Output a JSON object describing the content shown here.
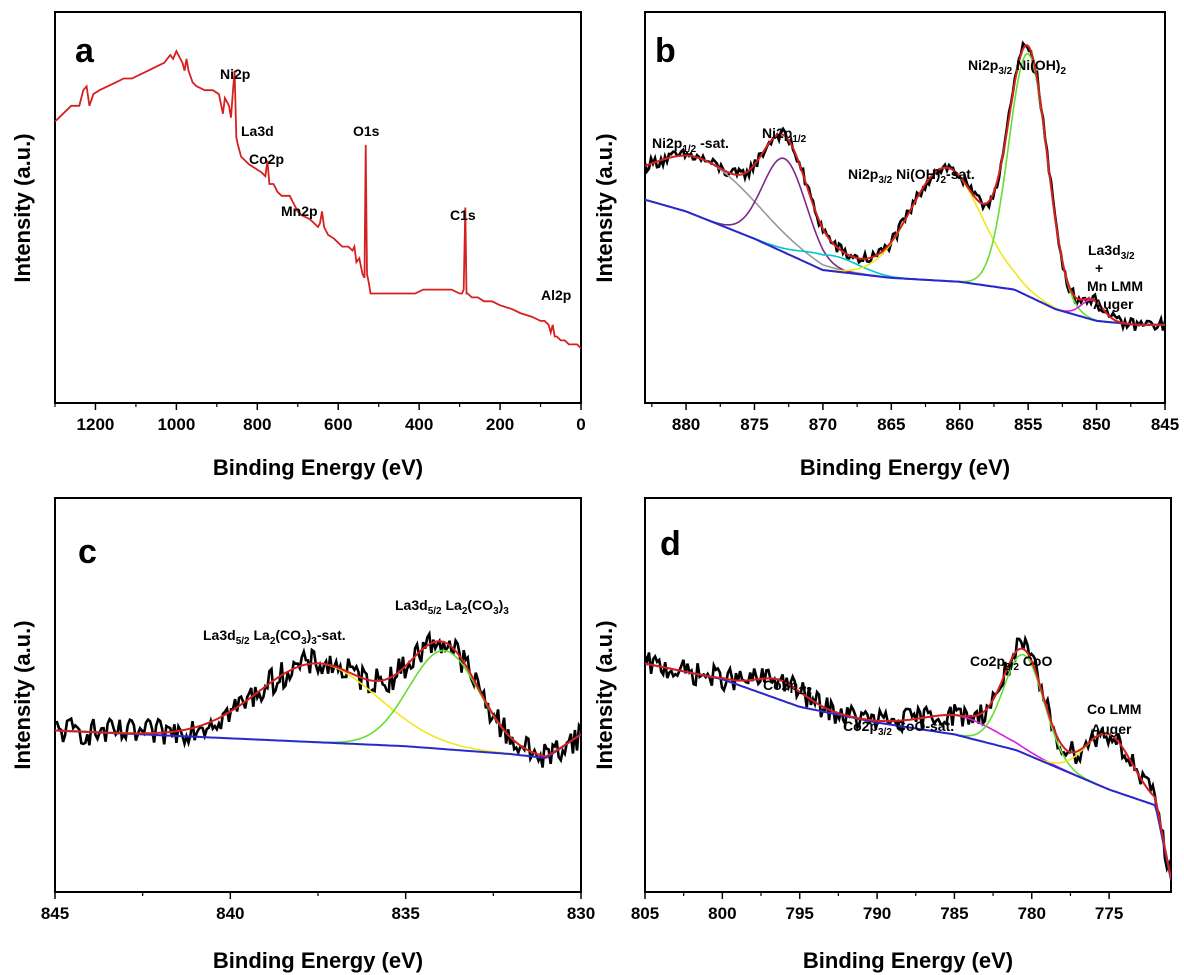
{
  "chart_data": [
    {
      "id": "a",
      "type": "line",
      "panel_label": "a",
      "xlabel": "Binding Energy (eV)",
      "ylabel": "Intensity (a.u.)",
      "x_reversed": true,
      "xlim": [
        1300,
        0
      ],
      "xticks": [
        1200,
        1000,
        800,
        600,
        400,
        200,
        0
      ],
      "ylim": [
        0,
        100
      ],
      "yticks_visible": false,
      "series": [
        {
          "color": "#d62020",
          "x": [
            1300,
            1280,
            1260,
            1240,
            1230,
            1222,
            1215,
            1205,
            1190,
            1170,
            1150,
            1130,
            1110,
            1090,
            1070,
            1050,
            1030,
            1015,
            1008,
            1000,
            990,
            985,
            980,
            975,
            970,
            960,
            950,
            930,
            910,
            895,
            885,
            880,
            875,
            870,
            865,
            860,
            856,
            852,
            848,
            840,
            830,
            820,
            805,
            790,
            780,
            775,
            770,
            760,
            750,
            740,
            720,
            710,
            700,
            690,
            670,
            660,
            650,
            645,
            640,
            635,
            630,
            625,
            610,
            600,
            590,
            575,
            565,
            560,
            555,
            548,
            540,
            535,
            532,
            529,
            525,
            520,
            505,
            495,
            470,
            440,
            410,
            390,
            370,
            340,
            320,
            300,
            294,
            290,
            286,
            283,
            280,
            270,
            255,
            240,
            220,
            200,
            170,
            150,
            120,
            100,
            90,
            80,
            75,
            70,
            65,
            60,
            50,
            40,
            30,
            20,
            10,
            0
          ],
          "y": [
            72,
            74,
            76,
            76,
            80,
            81,
            76,
            79,
            80,
            81,
            82,
            83,
            83,
            84,
            85,
            86,
            87,
            89,
            88,
            90,
            88,
            87,
            85,
            88,
            85,
            82,
            81,
            80,
            80,
            79,
            74,
            78,
            77,
            76,
            73,
            80,
            85,
            68,
            66,
            63,
            62,
            61,
            60,
            59,
            58,
            62,
            56,
            56,
            54,
            53,
            53,
            51,
            49,
            48,
            47,
            46,
            45,
            46,
            49,
            45,
            44,
            43,
            42,
            41,
            40,
            40,
            39,
            40,
            36,
            37,
            33,
            32,
            66,
            33,
            31,
            28,
            28,
            28,
            28,
            28,
            28,
            29,
            29,
            29,
            29,
            28,
            28,
            29,
            50,
            28,
            28,
            27,
            27,
            26,
            26,
            25,
            24,
            23,
            22,
            21,
            21,
            20,
            18,
            20,
            17,
            17,
            16,
            16,
            15,
            15,
            15,
            14
          ]
        }
      ],
      "annotations": [
        {
          "text": "Ni2p",
          "sub": "",
          "rest": ""
        },
        {
          "text": "La3d",
          "sub": "",
          "rest": ""
        },
        {
          "text": "Co2p",
          "sub": "",
          "rest": ""
        },
        {
          "text": "Mn2p",
          "sub": "",
          "rest": ""
        },
        {
          "text": "O1s",
          "sub": "",
          "rest": ""
        },
        {
          "text": "C1s",
          "sub": "",
          "rest": ""
        },
        {
          "text": "Al2p",
          "sub": "",
          "rest": ""
        }
      ]
    },
    {
      "id": "b",
      "type": "line",
      "panel_label": "b",
      "xlabel": "Binding Energy (eV)",
      "ylabel": "Intensity (a.u.)",
      "x_reversed": true,
      "xlim": [
        883,
        845
      ],
      "xticks": [
        880,
        875,
        870,
        865,
        860,
        855,
        850,
        845
      ],
      "ylim": [
        0,
        100
      ],
      "yticks_visible": false,
      "background": {
        "x": [
          883,
          880,
          875,
          870,
          865,
          860,
          856,
          853,
          850,
          847,
          845
        ],
        "y": [
          52,
          49,
          42,
          34,
          32,
          31,
          29,
          24,
          21,
          20,
          20
        ]
      },
      "peaks": [
        {
          "center": 878.8,
          "amp": 15,
          "width": 4.0,
          "color": "#999999"
        },
        {
          "center": 872.8,
          "amp": 24,
          "width": 1.6,
          "color": "#7b2a8c"
        },
        {
          "center": 869.5,
          "amp": 4,
          "width": 2.0,
          "color": "#00c8c8"
        },
        {
          "center": 861.0,
          "amp": 29,
          "width": 2.6,
          "color": "#f0e81c"
        },
        {
          "center": 855.0,
          "amp": 62,
          "width": 1.4,
          "color": "#66dd33"
        },
        {
          "center": 850.3,
          "amp": 5,
          "width": 0.8,
          "color": "#d81ed8"
        }
      ],
      "envelope_color": "#d62020",
      "background_color": "#2828d0",
      "raw_color": "#000000",
      "annotations": [
        {
          "text": "Ni2p",
          "sub": "1/2",
          "rest": " -sat."
        },
        {
          "text": "Ni2p",
          "sub": "1/2",
          "rest": ""
        },
        {
          "text": "Ni2p",
          "sub": "3/2",
          "rest": " Ni(OH)",
          "sub2": "2",
          "rest2": "-sat."
        },
        {
          "text": "Ni2p",
          "sub": "3/2",
          "rest": " Ni(OH)",
          "sub2": "2",
          "rest2": ""
        },
        {
          "text": "La3d",
          "sub": "3/2",
          "rest": ""
        },
        {
          "text": "+",
          "sub": "",
          "rest": ""
        },
        {
          "text": "Mn LMM",
          "sub": "",
          "rest": ""
        },
        {
          "text": "Auger",
          "sub": "",
          "rest": ""
        }
      ]
    },
    {
      "id": "c",
      "type": "line",
      "panel_label": "c",
      "xlabel": "Binding Energy (eV)",
      "ylabel": "Intensity (a.u.)",
      "x_reversed": true,
      "xlim": [
        845,
        830
      ],
      "xticks": [
        845,
        840,
        835,
        830
      ],
      "ylim": [
        0,
        100
      ],
      "yticks_visible": false,
      "background": {
        "x": [
          845,
          840,
          835,
          832,
          831,
          830
        ],
        "y": [
          41,
          39,
          37,
          35,
          34,
          40
        ]
      },
      "peaks": [
        {
          "center": 837.5,
          "amp": 20,
          "width": 1.7,
          "color": "#f0e81c"
        },
        {
          "center": 833.9,
          "amp": 25,
          "width": 1.0,
          "color": "#66dd33"
        }
      ],
      "envelope_color": "#d62020",
      "background_color": "#2828d0",
      "raw_color": "#000000",
      "annotations": [
        {
          "text": "La3d",
          "sub": "5/2",
          "rest": " La",
          "sub2": "2",
          "rest2": "(CO",
          "sub3": "3",
          "rest3": ")",
          "sub4": "3",
          "rest4": "-sat."
        },
        {
          "text": "La3d",
          "sub": "5/2",
          "rest": " La",
          "sub2": "2",
          "rest2": "(CO",
          "sub3": "3",
          "rest3": ")",
          "sub4": "3",
          "rest4": ""
        }
      ]
    },
    {
      "id": "d",
      "type": "line",
      "panel_label": "d",
      "xlabel": "Binding Energy (eV)",
      "ylabel": "Intensity (a.u.)",
      "x_reversed": true,
      "xlim": [
        805,
        771
      ],
      "xticks": [
        805,
        800,
        795,
        790,
        785,
        780,
        775
      ],
      "ylim": [
        0,
        100
      ],
      "yticks_visible": false,
      "background": {
        "x": [
          805,
          800,
          795,
          790,
          785,
          781,
          778,
          775,
          772,
          771
        ],
        "y": [
          58,
          54,
          47,
          43,
          40,
          36,
          31,
          26,
          22,
          3
        ]
      },
      "peaks": [
        {
          "center": 796.2,
          "amp": 5,
          "width": 1.6,
          "color": "#d62020"
        },
        {
          "center": 784.5,
          "amp": 5,
          "width": 2.5,
          "color": "#d81ed8"
        },
        {
          "center": 780.5,
          "amp": 25,
          "width": 1.3,
          "color": "#66dd33"
        },
        {
          "center": 775.0,
          "amp": 14,
          "width": 1.5,
          "color": "#f0e81c"
        }
      ],
      "envelope_color": "#d62020",
      "background_color": "#2828d0",
      "raw_color": "#000000",
      "annotations": [
        {
          "text": "Co2p",
          "sub": "1/2",
          "rest": ""
        },
        {
          "text": "Co2p",
          "sub": "3/2",
          "rest": "  CoO-sat."
        },
        {
          "text": "Co2p",
          "sub": "3/2",
          "rest": "  CoO"
        },
        {
          "text": "Co LMM",
          "sub": "",
          "rest": ""
        },
        {
          "text": "Auger",
          "sub": "",
          "rest": ""
        }
      ]
    }
  ]
}
